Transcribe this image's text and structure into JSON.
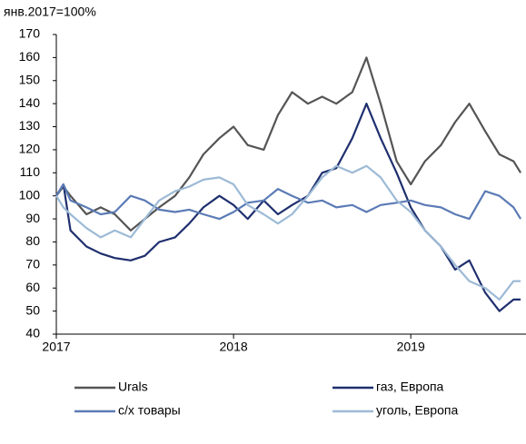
{
  "chart_data": {
    "type": "line",
    "y_label": "янв.2017=100%",
    "x": [
      2017,
      2017.04,
      2017.08,
      2017.17,
      2017.25,
      2017.33,
      2017.42,
      2017.5,
      2017.58,
      2017.67,
      2017.75,
      2017.83,
      2017.92,
      2018,
      2018.08,
      2018.17,
      2018.25,
      2018.33,
      2018.42,
      2018.5,
      2018.58,
      2018.67,
      2018.75,
      2018.83,
      2018.92,
      2019,
      2019.08,
      2019.17,
      2019.25,
      2019.33,
      2019.42,
      2019.5,
      2019.58,
      2019.62
    ],
    "series": [
      {
        "name": "Urals",
        "color": "#555555",
        "values": [
          100,
          104,
          100,
          92,
          95,
          92,
          85,
          90,
          95,
          100,
          108,
          118,
          125,
          130,
          122,
          120,
          135,
          145,
          140,
          143,
          140,
          145,
          160,
          140,
          115,
          105,
          115,
          122,
          132,
          140,
          128,
          118,
          115,
          110
        ]
      },
      {
        "name": "газ, Европа",
        "color": "#1f2f6e",
        "values": [
          100,
          105,
          85,
          78,
          75,
          73,
          72,
          74,
          80,
          82,
          88,
          95,
          100,
          96,
          90,
          98,
          92,
          96,
          100,
          110,
          112,
          125,
          140,
          125,
          110,
          95,
          85,
          78,
          68,
          72,
          58,
          50,
          55,
          55
        ]
      },
      {
        "name": "с/х товары",
        "color": "#5b7bb5",
        "values": [
          100,
          105,
          98,
          95,
          92,
          93,
          100,
          98,
          94,
          93,
          94,
          92,
          90,
          93,
          97,
          98,
          103,
          100,
          97,
          98,
          95,
          96,
          93,
          96,
          97,
          98,
          96,
          95,
          92,
          90,
          102,
          100,
          95,
          90
        ]
      },
      {
        "name": "уголь, Европа",
        "color": "#9dbad6",
        "values": [
          100,
          95,
          92,
          86,
          82,
          85,
          82,
          90,
          98,
          102,
          104,
          107,
          108,
          105,
          96,
          92,
          88,
          92,
          100,
          108,
          113,
          110,
          113,
          108,
          98,
          93,
          85,
          78,
          70,
          63,
          60,
          55,
          63,
          63
        ]
      }
    ],
    "xlim": [
      2017,
      2019.65
    ],
    "xticks": [
      2017,
      2018,
      2019
    ],
    "ylim": [
      40,
      170
    ],
    "yticks": [
      40,
      50,
      60,
      70,
      80,
      90,
      100,
      110,
      120,
      130,
      140,
      150,
      160,
      170
    ],
    "grid": false
  }
}
